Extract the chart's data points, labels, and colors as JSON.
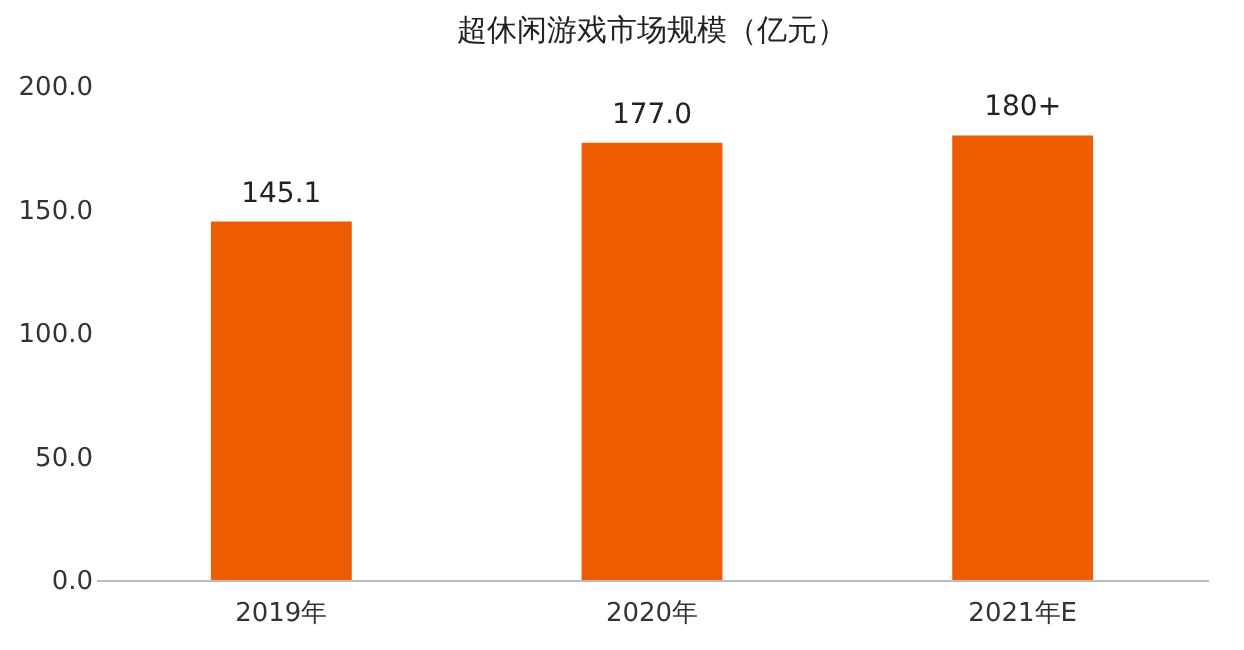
{
  "chart_data": {
    "type": "bar",
    "title": "超休闲游戏市场规模（亿元）",
    "categories": [
      "2019年",
      "2020年",
      "2021年E"
    ],
    "values": [
      145.1,
      177.0,
      180
    ],
    "value_labels": [
      "145.1",
      "177.0",
      "180+"
    ],
    "color": "#ee5b00",
    "ylim": [
      0,
      200
    ],
    "yticks": [
      {
        "value": 0,
        "label": "0.0"
      },
      {
        "value": 50,
        "label": "50.0"
      },
      {
        "value": 100,
        "label": "100.0"
      },
      {
        "value": 150,
        "label": "150.0"
      },
      {
        "value": 200,
        "label": "200.0"
      }
    ],
    "grid": false
  }
}
